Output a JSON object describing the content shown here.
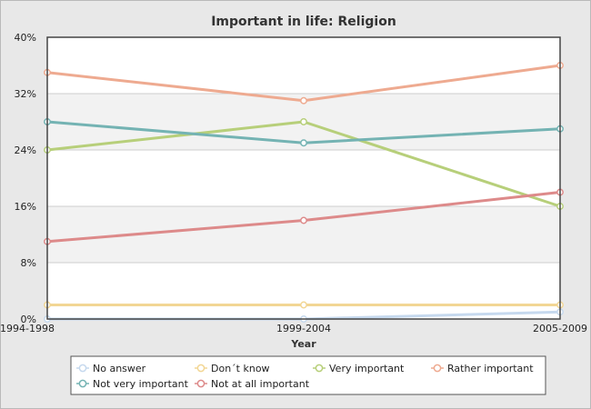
{
  "chart_data": {
    "type": "line",
    "title": "Important in life: Religion",
    "xlabel": "Year",
    "ylabel": "",
    "x": [
      "1994-1998",
      "1999-2004",
      "2005-2009"
    ],
    "ylim": [
      0,
      40
    ],
    "yticks": [
      0,
      8,
      16,
      24,
      32,
      40
    ],
    "ytick_labels": [
      "0%",
      "8%",
      "16%",
      "24%",
      "32%",
      "40%"
    ],
    "grid": true,
    "legend_position": "bottom",
    "series": [
      {
        "name": "No answer",
        "values": [
          0,
          0,
          1
        ],
        "color": "#c6d9ee"
      },
      {
        "name": "Don´t know",
        "values": [
          2,
          2,
          2
        ],
        "color": "#f2d694"
      },
      {
        "name": "Very important",
        "values": [
          24,
          28,
          16
        ],
        "color": "#b7cf7a"
      },
      {
        "name": "Rather important",
        "values": [
          35,
          31,
          36
        ],
        "color": "#eeaa90"
      },
      {
        "name": "Not very important",
        "values": [
          28,
          25,
          27
        ],
        "color": "#74b3b3"
      },
      {
        "name": "Not at all important",
        "values": [
          11,
          14,
          18
        ],
        "color": "#dd8a8a"
      }
    ]
  }
}
